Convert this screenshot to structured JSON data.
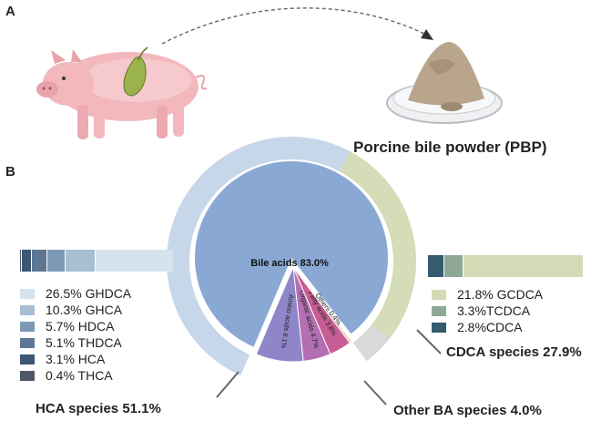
{
  "panels": {
    "a": "A",
    "b": "B"
  },
  "product_label": "Porcine bile powder (PBP)",
  "colors": {
    "bile_acids": "#8aa8d4",
    "hca_ring": "#c7d7ea",
    "cdca_ring": "#d4dcb8",
    "other_ring": "#d9d9d9",
    "amino_acids": "#8f86c9",
    "organic_acids": "#b36fb2",
    "fatty_acids": "#c75d93",
    "others": "#e9c5a8"
  },
  "pie": {
    "bile_acids_label": "Bile acids 83.0%",
    "bile_acids_value": 83.0,
    "slices": [
      {
        "label": "Amino acids 8.1%",
        "value": 8.1,
        "color": "#8f86c9"
      },
      {
        "label": "Organic acids 4.7%",
        "value": 4.7,
        "color": "#b36fb2"
      },
      {
        "label": "Fatty acids 3.8%",
        "value": 3.8,
        "color": "#c75d93"
      },
      {
        "label": "Others 0.4%",
        "value": 0.4,
        "color": "#e9c5a8"
      }
    ]
  },
  "ring": [
    {
      "name": "HCA species",
      "value": 51.1,
      "color": "#c7d7ea"
    },
    {
      "name": "CDCA species",
      "value": 27.9,
      "color": "#d4dcb8"
    },
    {
      "name": "Other BA species",
      "value": 4.0,
      "color": "#d9d9d9"
    }
  ],
  "species_labels": {
    "hca": "HCA species 51.1%",
    "cdca": "CDCA species 27.9%",
    "other": "Other BA species 4.0%"
  },
  "hca_items": [
    {
      "label": "26.5% GHDCA",
      "value": 26.5,
      "color": "#d6e3ee"
    },
    {
      "label": "10.3% GHCA",
      "value": 10.3,
      "color": "#a8bed3"
    },
    {
      "label": "5.7% HDCA",
      "value": 5.7,
      "color": "#7d98b4"
    },
    {
      "label": "5.1% THDCA",
      "value": 5.1,
      "color": "#5c7794"
    },
    {
      "label": "3.1% HCA",
      "value": 3.1,
      "color": "#3c5673"
    },
    {
      "label": "0.4% THCA",
      "value": 0.4,
      "color": "#4f5766"
    }
  ],
  "cdca_items": [
    {
      "label": "21.8% GCDCA",
      "value": 21.8,
      "color": "#d3dbb6"
    },
    {
      "label": "3.3%TCDCA",
      "value": 3.3,
      "color": "#8fa895"
    },
    {
      "label": "2.8%CDCA",
      "value": 2.8,
      "color": "#345b70"
    }
  ]
}
